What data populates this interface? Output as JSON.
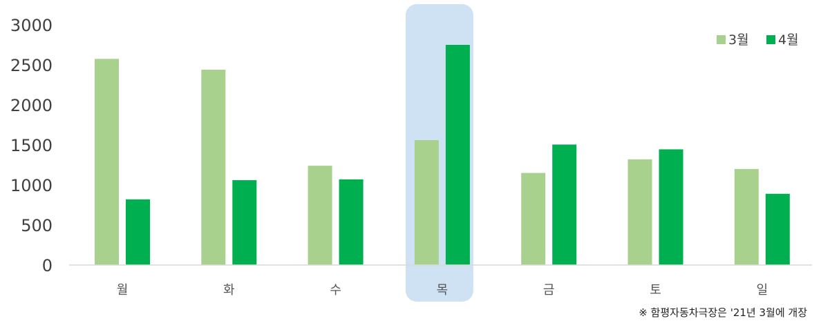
{
  "chart_data": {
    "type": "bar",
    "title": "",
    "xlabel": "",
    "ylabel": "",
    "categories": [
      "월",
      "화",
      "수",
      "목",
      "금",
      "토",
      "일"
    ],
    "series": [
      {
        "name": "3월",
        "values": [
          2575,
          2440,
          1240,
          1560,
          1150,
          1320,
          1200
        ],
        "color": "#a9d18e"
      },
      {
        "name": "4월",
        "values": [
          820,
          1060,
          1070,
          2750,
          1505,
          1445,
          890
        ],
        "color": "#00b050"
      }
    ],
    "ylim": [
      0,
      3000
    ],
    "yticks": [
      0,
      500,
      1000,
      1500,
      2000,
      2500,
      3000
    ],
    "highlight_category": "목",
    "highlight_color": "#cfe2f3",
    "axis_color": "#d9d9d9",
    "grid": false,
    "legend_position": "top-right",
    "footnote": "※ 함평자동차극장은 '21년 3월에 개장"
  }
}
